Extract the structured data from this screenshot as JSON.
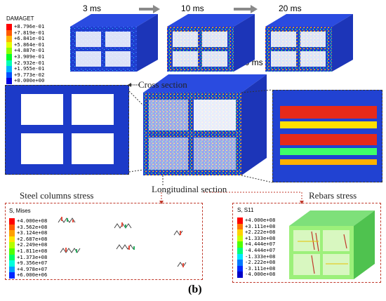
{
  "damage_legend": {
    "title": "DAMAGET",
    "entries": [
      {
        "value": "+8.796e-01",
        "color": "#ff0000"
      },
      {
        "value": "+7.819e-01",
        "color": "#ff5a00"
      },
      {
        "value": "+6.841e-01",
        "color": "#ffb400"
      },
      {
        "value": "+5.864e-01",
        "color": "#e6ff00"
      },
      {
        "value": "+4.887e-01",
        "color": "#8cff00"
      },
      {
        "value": "+3.909e-01",
        "color": "#00ff28"
      },
      {
        "value": "+2.932e-01",
        "color": "#00ffb4"
      },
      {
        "value": "+1.955e-01",
        "color": "#00b4ff"
      },
      {
        "value": "+9.773e-02",
        "color": "#0050ff"
      },
      {
        "value": "+0.000e+00",
        "color": "#0000e0"
      }
    ]
  },
  "times": [
    "3 ms",
    "10 ms",
    "20 ms",
    "30 ms"
  ],
  "labels": {
    "cross_section": "Cross section",
    "longitudinal_section": "Longitudinal section",
    "steel_columns_stress": "Steel columns stress",
    "rebars_stress": "Rebars stress",
    "panel": "(b)"
  },
  "mises_legend": {
    "title": "S, Mises",
    "entries": [
      {
        "value": "+4.000e+08",
        "color": "#ff0000"
      },
      {
        "value": "+3.562e+08",
        "color": "#ff5a00"
      },
      {
        "value": "+3.124e+08",
        "color": "#ffa000"
      },
      {
        "value": "+2.687e+08",
        "color": "#ffe600"
      },
      {
        "value": "+2.249e+08",
        "color": "#b4ff00"
      },
      {
        "value": "+1.811e+08",
        "color": "#50ff00"
      },
      {
        "value": "+1.373e+08",
        "color": "#00ff64"
      },
      {
        "value": "+9.356e+07",
        "color": "#00ffdc"
      },
      {
        "value": "+4.978e+07",
        "color": "#00a0ff"
      },
      {
        "value": "+6.000e+06",
        "color": "#0028ff"
      }
    ]
  },
  "s11_legend": {
    "title": "S, S11",
    "entries": [
      {
        "value": "+4.000e+08",
        "color": "#ff0000"
      },
      {
        "value": "+3.111e+08",
        "color": "#ff7800"
      },
      {
        "value": "+2.222e+08",
        "color": "#ffd200"
      },
      {
        "value": "+1.333e+08",
        "color": "#c8ff00"
      },
      {
        "value": "+4.444e+07",
        "color": "#50ff00"
      },
      {
        "value": "-4.444e+07",
        "color": "#00ff78"
      },
      {
        "value": "-1.333e+08",
        "color": "#00e6ff"
      },
      {
        "value": "-2.222e+08",
        "color": "#0078ff"
      },
      {
        "value": "-3.111e+08",
        "color": "#0028ff"
      },
      {
        "value": "-4.000e+08",
        "color": "#0000c8"
      }
    ]
  }
}
